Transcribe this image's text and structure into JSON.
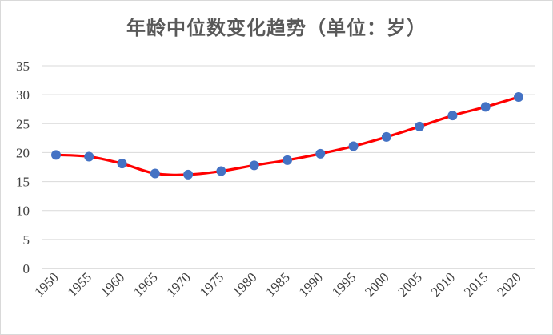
{
  "chart_data": {
    "type": "line",
    "title": "年龄中位数变化趋势（单位：岁）",
    "xlabel": "",
    "ylabel": "",
    "ylim": [
      0,
      35
    ],
    "y_ticks": [
      "0",
      "5",
      "10",
      "15",
      "20",
      "25",
      "30",
      "35"
    ],
    "categories": [
      "1950",
      "1955",
      "1960",
      "1965",
      "1970",
      "1975",
      "1980",
      "1985",
      "1990",
      "1995",
      "2000",
      "2005",
      "2010",
      "2015",
      "2020"
    ],
    "series": [
      {
        "values": [
          19.6,
          19.3,
          18.1,
          16.4,
          16.2,
          16.8,
          17.8,
          18.7,
          19.8,
          21.1,
          22.7,
          24.5,
          26.4,
          27.9,
          29.6
        ]
      }
    ],
    "grid": true,
    "legend": "none",
    "colors": {
      "line": "#ff0000",
      "marker": "#4472c4",
      "grid": "#d9d9d9",
      "axis": "#bfbfbf"
    }
  }
}
